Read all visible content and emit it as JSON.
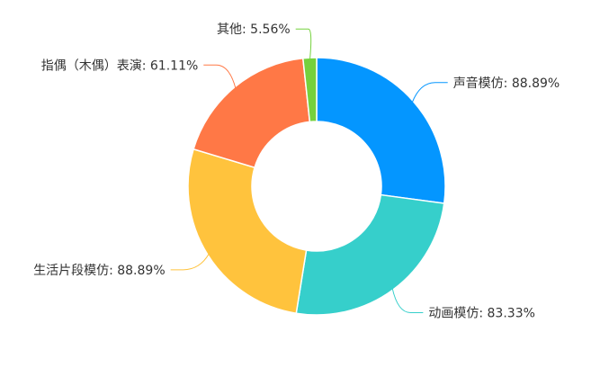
{
  "chart_data": {
    "type": "pie",
    "variant": "donut",
    "start": "top",
    "direction": "clockwise",
    "legend": "none",
    "slices": [
      {
        "label": "声音模仿",
        "value": 88.89,
        "display": "声音模仿: 88.89%",
        "color": "#0496ff"
      },
      {
        "label": "动画模仿",
        "value": 83.33,
        "display": "动画模仿: 83.33%",
        "color": "#36cfcb"
      },
      {
        "label": "生活片段模仿",
        "value": 88.89,
        "display": "生活片段模仿: 88.89%",
        "color": "#ffc33d"
      },
      {
        "label": "指偶（木偶）表演",
        "value": 61.11,
        "display": "指偶（木偶）表演: 61.11%",
        "color": "#ff7846"
      },
      {
        "label": "其他",
        "value": 5.56,
        "display": "其他: 5.56%",
        "color": "#75d13d"
      }
    ]
  }
}
